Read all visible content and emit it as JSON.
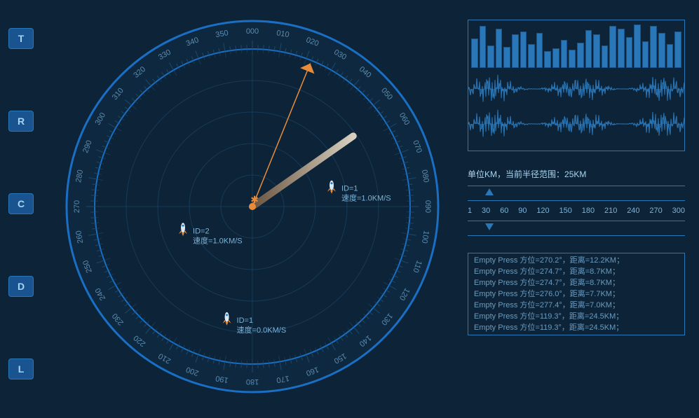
{
  "colors": {
    "bg": "#0d2438",
    "ring": "#1a6fc4",
    "ring_dark": "#1a4a6e",
    "accent": "#2a77b8",
    "text": "#7bb3d9",
    "pointer": "#e88c3a",
    "sweep_light": "#d8cfc0",
    "sweep_dark": "#6a5540"
  },
  "radar": {
    "pointer_angle": 22,
    "sweep_angle": 55,
    "sweep_width": 10,
    "radius_km": 25,
    "targets": [
      {
        "id": "1",
        "speed": "1.0KM/S",
        "angle": 75,
        "dist": 0.52,
        "label_id": "ID=1",
        "label_speed": "速度=1.0KM/S"
      },
      {
        "id": "2",
        "speed": "1.0KM/S",
        "angle": 253,
        "dist": 0.46,
        "label_id": "ID=2",
        "label_speed": "速度=1.0KM/S"
      },
      {
        "id": "1b",
        "speed": "0.0KM/S",
        "angle": 193,
        "dist": 0.72,
        "label_id": "ID=1",
        "label_speed": "速度=0.0KM/S"
      }
    ],
    "degree_step": 10
  },
  "side_buttons": [
    "T",
    "R",
    "C",
    "D",
    "L"
  ],
  "bars": [
    42,
    60,
    32,
    56,
    30,
    48,
    52,
    34,
    50,
    24,
    28,
    40,
    26,
    36,
    54,
    48,
    32,
    60,
    56,
    44,
    62,
    38,
    60,
    50,
    34,
    52
  ],
  "slider": {
    "label_prefix": "单位KM，当前半径范围：",
    "label_value": "25KM",
    "ticks": [
      "1",
      "30",
      "60",
      "90",
      "120",
      "150",
      "180",
      "210",
      "240",
      "270",
      "300"
    ],
    "top_pos_pct": 8,
    "bottom_pos_pct": 8
  },
  "log": [
    "Empty Press 方位=270.2°，距离=12.2KM；",
    "Empty Press 方位=274.7°，距离=8.7KM；",
    "Empty Press 方位=274.7°，距离=8.7KM；",
    "Empty Press 方位=276.0°，距离=7.7KM；",
    "Empty Press 方位=277.4°，距离=7.0KM；",
    "Empty Press 方位=119.3°，距离=24.5KM；",
    "Empty Press 方位=119.3°，距离=24.5KM；"
  ]
}
